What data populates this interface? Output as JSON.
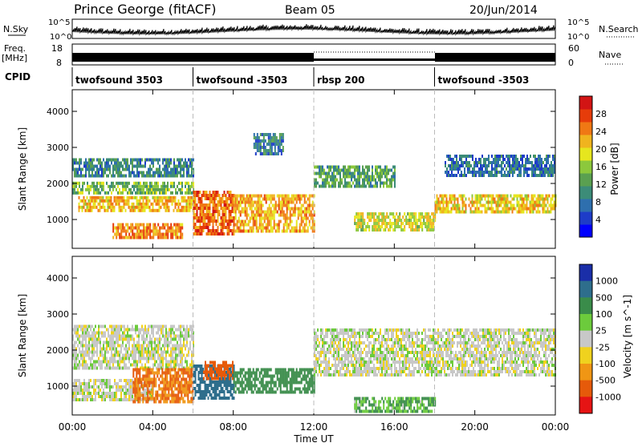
{
  "header": {
    "station": "Prince George (fitACF)",
    "beam": "Beam 05",
    "date": "20/Jun/2014"
  },
  "side_labels": {
    "nsky": "N.Sky",
    "nsky_ticks": [
      "10^5",
      "10^0"
    ],
    "nsearch": "N.Search",
    "nsearch_ticks": [
      "10^5",
      "10^0"
    ],
    "freq_title": "Freq.",
    "freq_unit": "[MHz]",
    "freq_ticks": [
      "18",
      "8"
    ],
    "nave": "Nave",
    "nave_ticks": [
      "60",
      "0"
    ],
    "cpid": "CPID"
  },
  "cpid_segments": [
    {
      "label": "twofsound 3503",
      "start_h": 0
    },
    {
      "label": "twofsound -3503",
      "start_h": 6
    },
    {
      "label": "rbsp 200",
      "start_h": 12
    },
    {
      "label": "twofsound -3503",
      "start_h": 18
    }
  ],
  "chart_data": [
    {
      "type": "heatmap",
      "panel": "power",
      "ylabel": "Slant Range [km]",
      "yticks": [
        "1000",
        "2000",
        "3000",
        "4000"
      ],
      "ylim": [
        200,
        4600
      ],
      "xlim_hours": [
        0,
        24
      ],
      "colorbar": {
        "label": "Power [dB]",
        "ticks": [
          "4",
          "8",
          "12",
          "16",
          "20",
          "24",
          "28"
        ],
        "range": [
          0,
          32
        ]
      },
      "bands": [
        {
          "h0": 0.0,
          "h1": 6.0,
          "r0": 2200,
          "r1": 2700,
          "level": 9
        },
        {
          "h0": 0.0,
          "h1": 6.0,
          "r0": 1700,
          "r1": 2050,
          "level": 14
        },
        {
          "h0": 0.3,
          "h1": 6.0,
          "r0": 1250,
          "r1": 1650,
          "level": 22
        },
        {
          "h0": 2.0,
          "h1": 5.5,
          "r0": 500,
          "r1": 900,
          "level": 25
        },
        {
          "h0": 6.0,
          "h1": 8.0,
          "r0": 600,
          "r1": 1800,
          "level": 27
        },
        {
          "h0": 8.0,
          "h1": 12.0,
          "r0": 700,
          "r1": 1700,
          "level": 23
        },
        {
          "h0": 9.0,
          "h1": 10.5,
          "r0": 2800,
          "r1": 3400,
          "level": 8
        },
        {
          "h0": 12.0,
          "h1": 16.0,
          "r0": 1900,
          "r1": 2500,
          "level": 12
        },
        {
          "h0": 14.0,
          "h1": 18.0,
          "r0": 700,
          "r1": 1200,
          "level": 19
        },
        {
          "h0": 18.0,
          "h1": 24.0,
          "r0": 1200,
          "r1": 1700,
          "level": 21
        },
        {
          "h0": 18.5,
          "h1": 24.0,
          "r0": 2200,
          "r1": 2800,
          "level": 7
        }
      ]
    },
    {
      "type": "heatmap",
      "panel": "velocity",
      "ylabel": "Slant Range [km]",
      "yticks": [
        "1000",
        "2000",
        "3000",
        "4000"
      ],
      "ylim": [
        200,
        4600
      ],
      "xlim_hours": [
        0,
        24
      ],
      "xticks": [
        "00:00",
        "04:00",
        "08:00",
        "12:00",
        "16:00",
        "20:00",
        "00:00"
      ],
      "xlabel": "Time UT",
      "colorbar": {
        "label": "Velocity [m s^-1]",
        "ticks": [
          "1000",
          "500",
          "100",
          "25",
          "-25",
          "-100",
          "-500",
          "-1000"
        ]
      },
      "bands": [
        {
          "h0": 0.0,
          "h1": 6.0,
          "r0": 1500,
          "r1": 2700,
          "vel": 0
        },
        {
          "h0": 0.0,
          "h1": 4.0,
          "r0": 600,
          "r1": 1200,
          "vel": 0
        },
        {
          "h0": 3.0,
          "h1": 6.0,
          "r0": 600,
          "r1": 1500,
          "vel": -300
        },
        {
          "h0": 6.0,
          "h1": 8.0,
          "r0": 700,
          "r1": 1600,
          "vel": 400
        },
        {
          "h0": 6.5,
          "h1": 8.0,
          "r0": 1200,
          "r1": 1700,
          "vel": -400
        },
        {
          "h0": 8.0,
          "h1": 12.0,
          "r0": 800,
          "r1": 1500,
          "vel": 150
        },
        {
          "h0": 12.0,
          "h1": 24.0,
          "r0": 1300,
          "r1": 2600,
          "vel": 0
        },
        {
          "h0": 14.0,
          "h1": 18.0,
          "r0": 300,
          "r1": 700,
          "vel": 60
        }
      ]
    }
  ]
}
